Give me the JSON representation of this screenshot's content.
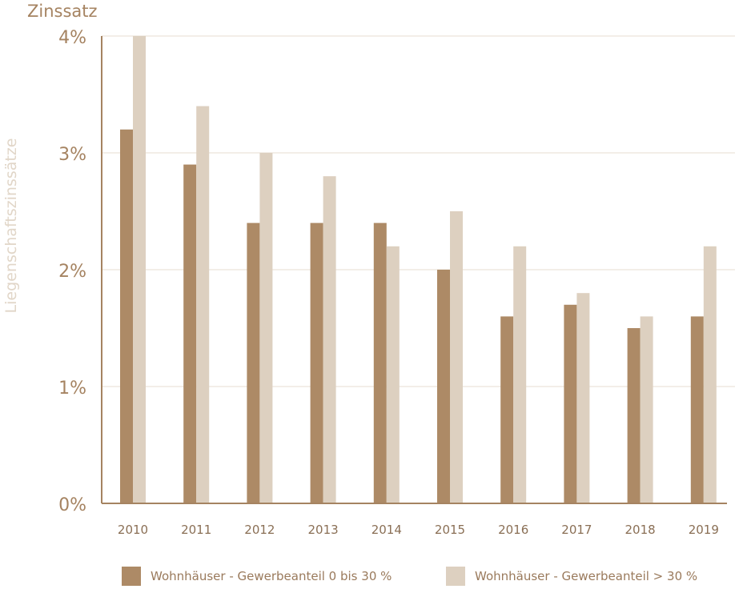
{
  "chart_data": {
    "type": "bar",
    "title": "Zinssatz",
    "ylabel": "Liegenschaftszinssätze",
    "xlabel": "",
    "categories": [
      "2010",
      "2011",
      "2012",
      "2013",
      "2014",
      "2015",
      "2016",
      "2017",
      "2018",
      "2019"
    ],
    "series": [
      {
        "name": "Wohnhäuser - Gewerbeanteil 0 bis 30 %",
        "color": "#ad8a66",
        "values": [
          3.2,
          2.9,
          2.4,
          2.4,
          2.4,
          2.0,
          1.6,
          1.7,
          1.5,
          1.6
        ]
      },
      {
        "name": "Wohnhäuser - Gewerbeanteil > 30 %",
        "color": "#ddd0c0",
        "values": [
          4.0,
          3.4,
          3.0,
          2.8,
          2.2,
          2.5,
          2.2,
          1.8,
          1.6,
          2.2
        ]
      }
    ],
    "ylim": [
      0,
      4
    ],
    "yticks": [
      0,
      1,
      2,
      3,
      4
    ],
    "ytick_labels": [
      "0%",
      "1%",
      "2%",
      "3%",
      "4%"
    ],
    "grid": true,
    "legend_position": "bottom"
  },
  "colors": {
    "axis": "#a58361",
    "grid": "#e7ddd1",
    "tick_text": "#a58361",
    "category_text": "#8a6f55"
  }
}
